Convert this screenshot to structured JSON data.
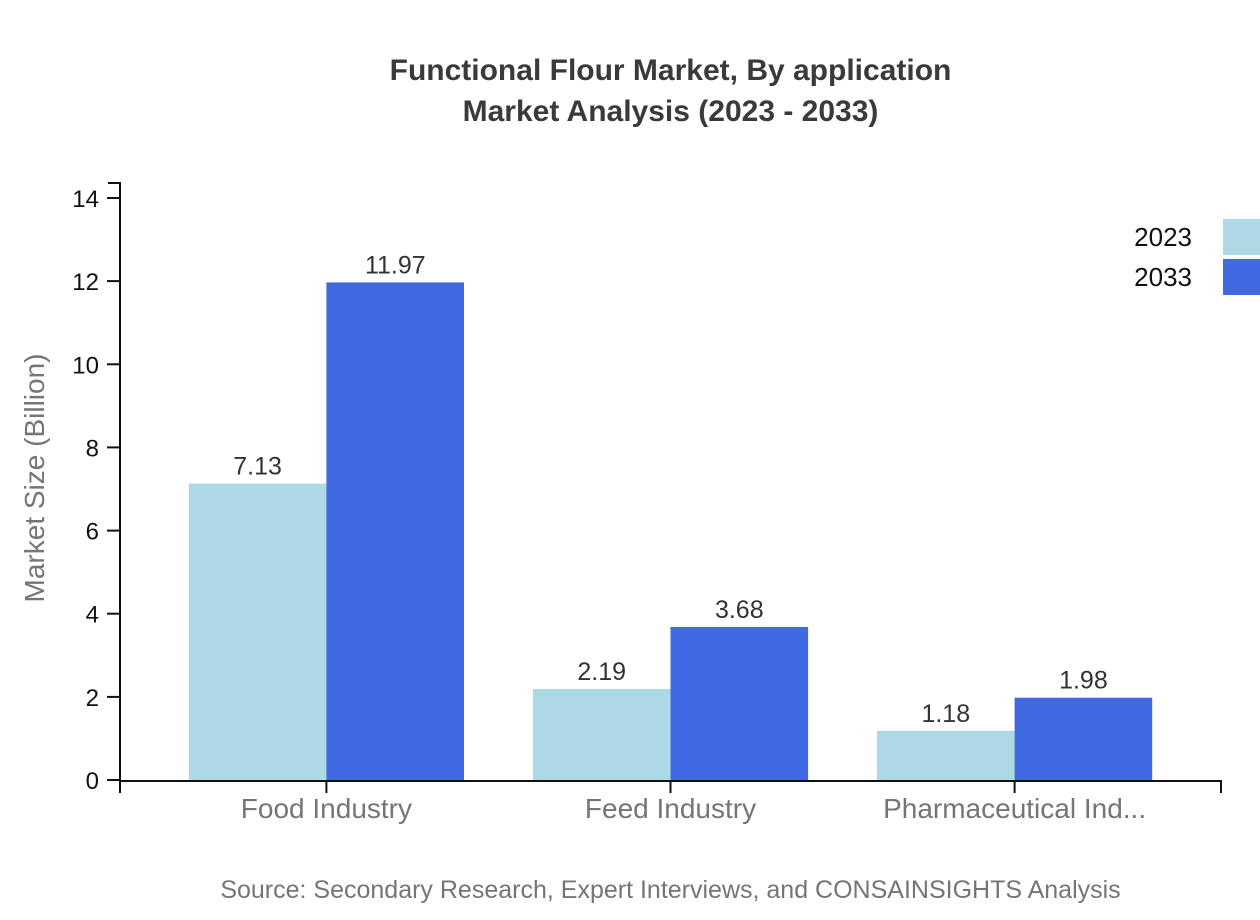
{
  "chart_data": {
    "type": "bar",
    "title": "Functional Flour Market, By application",
    "subtitle": "Market Analysis (2023 - 2033)",
    "categories": [
      "Food Industry",
      "Feed Industry",
      "Pharmaceutical Ind..."
    ],
    "series": [
      {
        "name": "2023",
        "color": "#ADD8E6",
        "values": [
          7.13,
          2.19,
          1.18
        ]
      },
      {
        "name": "2033",
        "color": "#4169E1",
        "values": [
          11.97,
          3.68,
          1.98
        ]
      }
    ],
    "xlabel": "",
    "ylabel": "Market Size (Billion)",
    "ylim": [
      0,
      14.36
    ],
    "yticks": [
      0,
      2,
      4,
      6,
      8,
      10,
      12,
      14
    ],
    "grid": false,
    "legend_position": "top-right",
    "value_labels": true
  },
  "colors": {
    "axis": "#111111",
    "title_text": "#3a3a3a",
    "tick_label": "#111111",
    "category_label": "#757575",
    "value_label": "#333333",
    "source_text": "#757575"
  },
  "source_note": "Source: Secondary Research, Expert Interviews, and CONSAINSIGHTS Analysis"
}
